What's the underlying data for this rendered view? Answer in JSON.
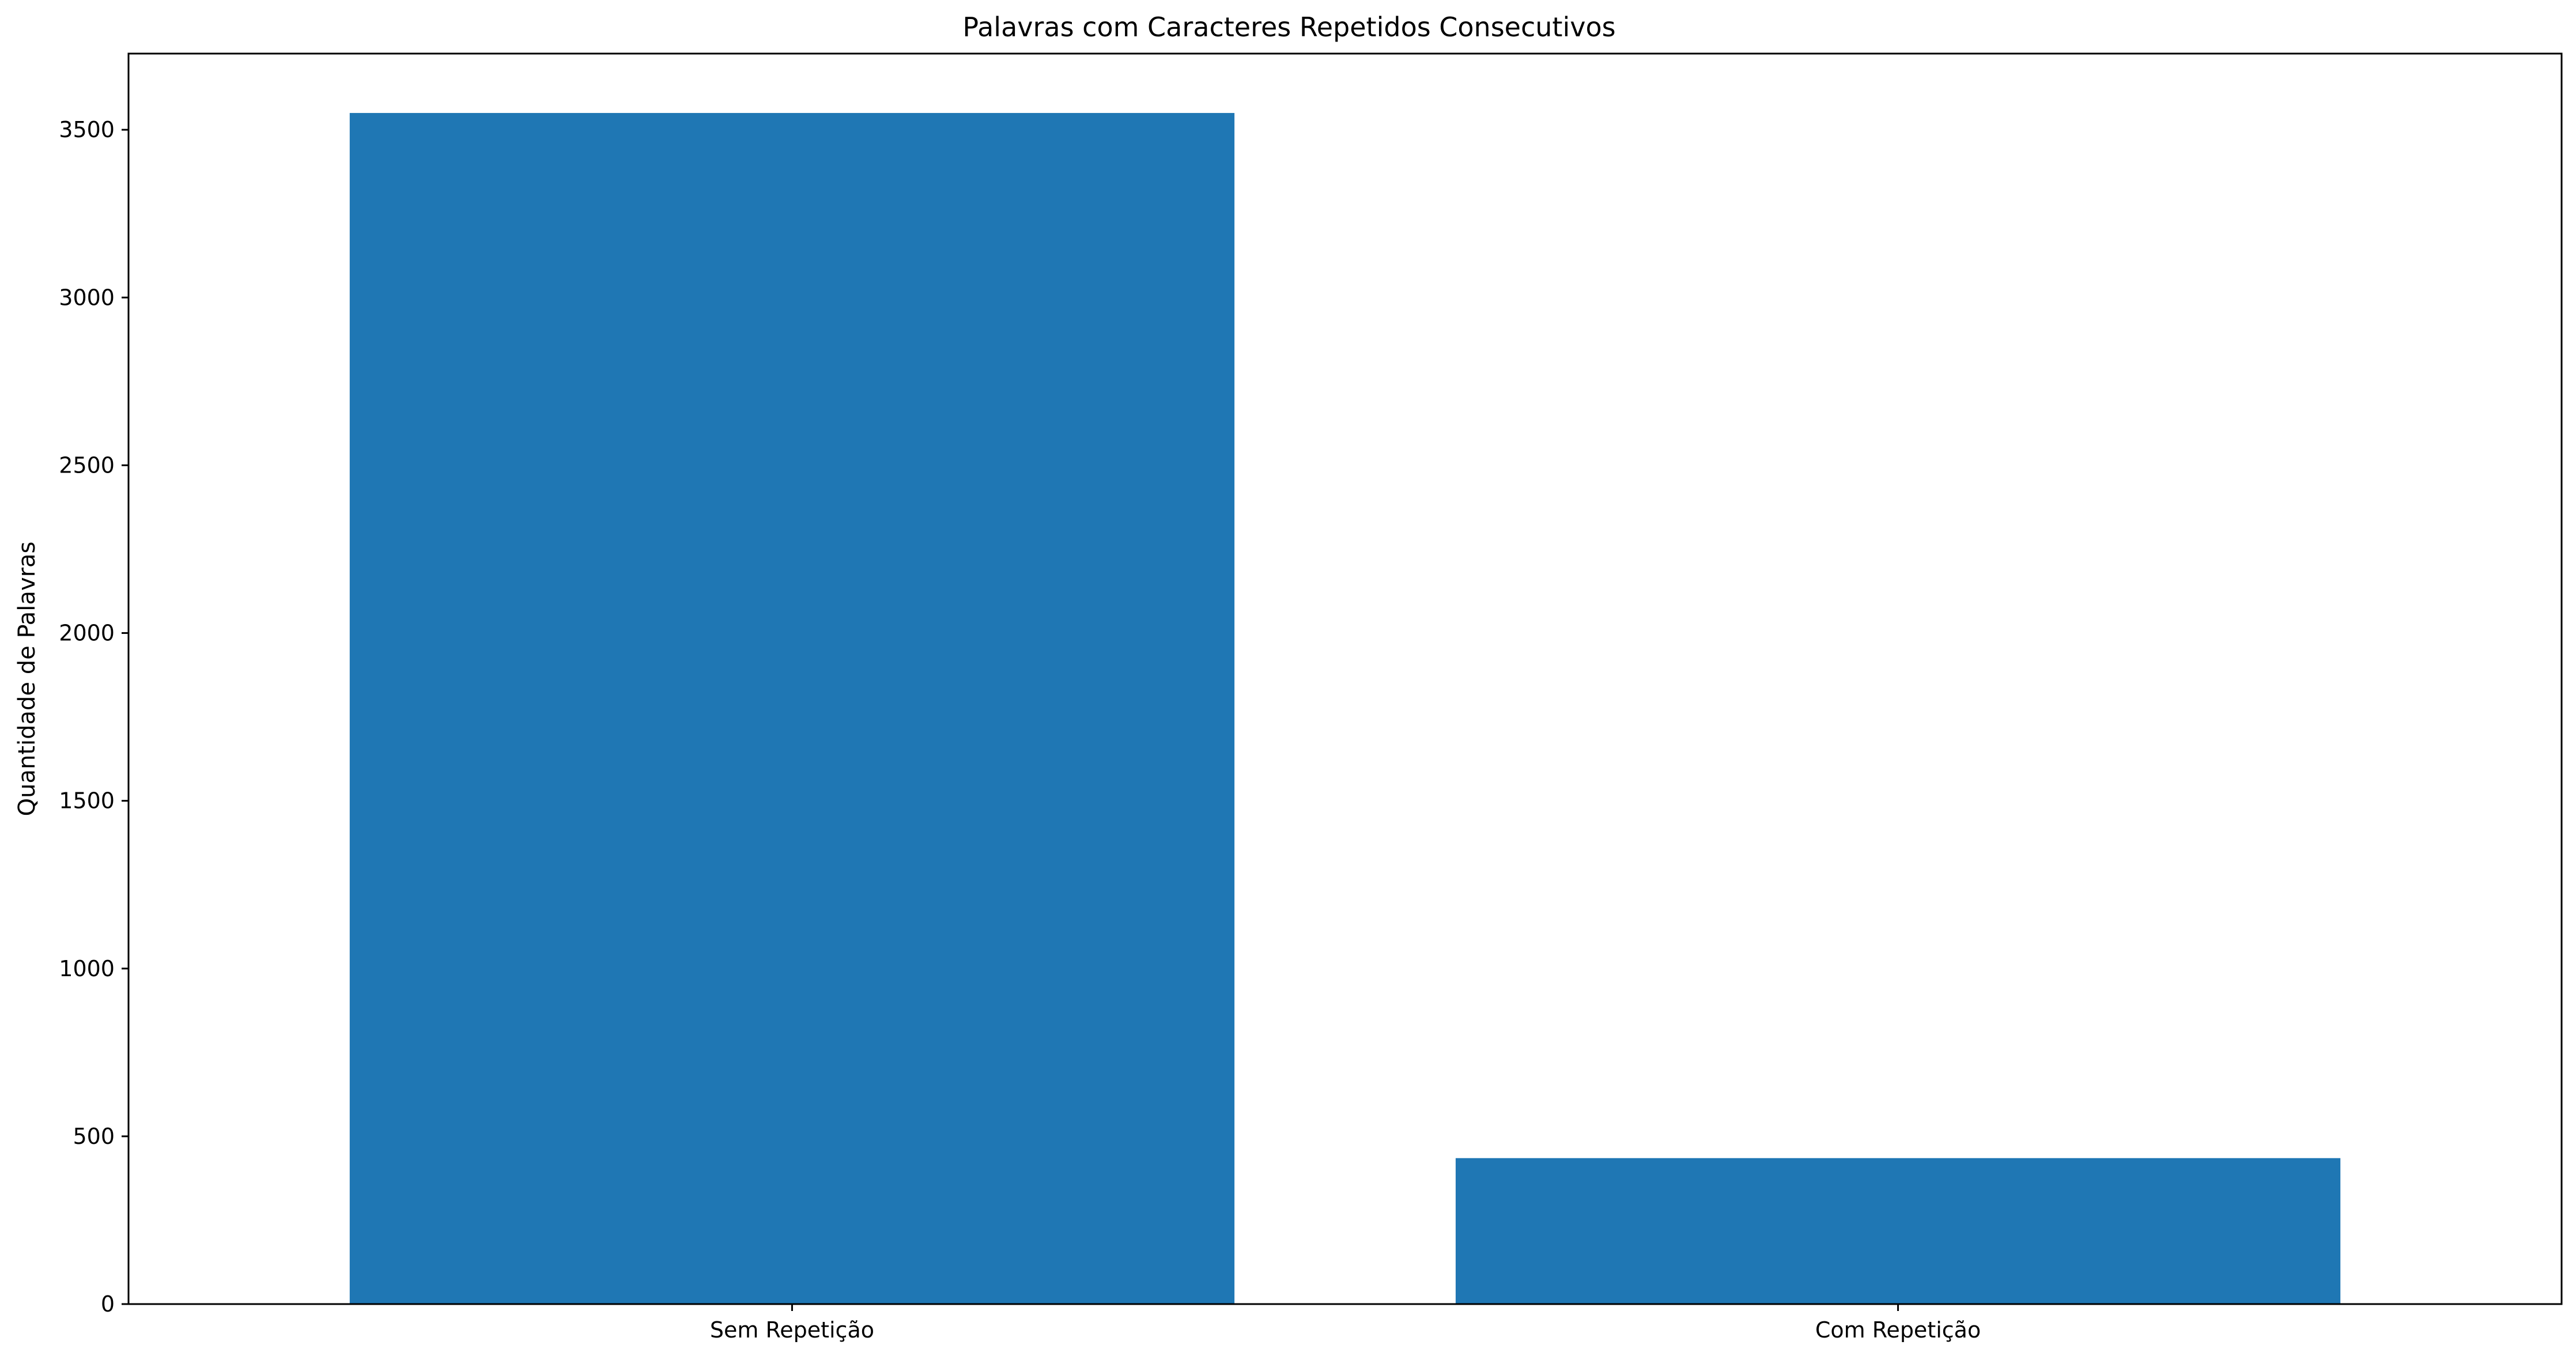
{
  "chart_data": {
    "type": "bar",
    "title": "Palavras com Caracteres Repetidos Consecutivos",
    "xlabel": "",
    "ylabel": "Quantidade de Palavras",
    "categories": [
      "Sem Repetição",
      "Com Repetição"
    ],
    "values": [
      3550,
      435
    ],
    "ylim": [
      0,
      3727
    ],
    "yticks": [
      0,
      500,
      1000,
      1500,
      2000,
      2500,
      3000,
      3500
    ],
    "ytick_labels": [
      "0",
      "500",
      "1000",
      "1500",
      "2000",
      "2500",
      "3000",
      "3500"
    ],
    "grid": false,
    "bar_color": "#1f77b4"
  }
}
